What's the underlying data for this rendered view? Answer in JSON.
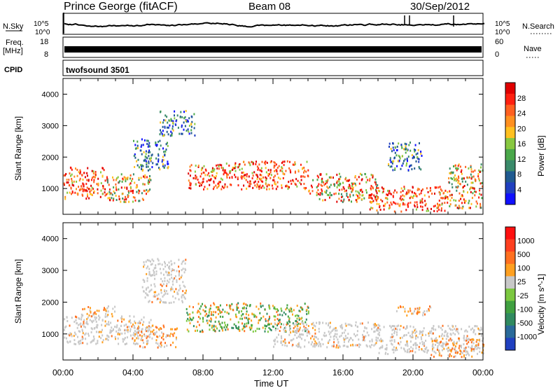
{
  "header": {
    "station": "Prince George (fitACF)",
    "beam": "Beam 08",
    "date": "30/Sep/2012"
  },
  "strips": {
    "nsky_label": "N.Sky",
    "nsearch_label": "N.Search",
    "nsky_ticks": [
      "10^5",
      "10^0"
    ],
    "freq_label": "Freq.",
    "freq_unit": "[MHz]",
    "freq_ticks": [
      "18",
      "8"
    ],
    "nave_label": "Nave",
    "nave_ticks": [
      "60",
      "0"
    ],
    "cpid_label": "CPID",
    "cpid_value": "twofsound 3501"
  },
  "chart_data": [
    {
      "type": "heatmap",
      "name": "power",
      "ylabel": "Slant Range [km]",
      "xlabel": "",
      "ylim": [
        180,
        4500
      ],
      "yticks": [
        "1000",
        "2000",
        "3000",
        "4000"
      ],
      "xlim": [
        0,
        24
      ],
      "colorbar": {
        "label": "Power [dB]",
        "ticks": [
          "4",
          "8",
          "12",
          "16",
          "20",
          "24",
          "28"
        ],
        "colors": [
          "#1010ff",
          "#2040c0",
          "#205a90",
          "#3a8a6a",
          "#4aa84a",
          "#88c840",
          "#ffc020",
          "#ff9020",
          "#ff6020",
          "#ff2010",
          "#e00000"
        ]
      },
      "features": [
        {
          "t0": 0.0,
          "t1": 2.5,
          "r0": 700,
          "r1": 1700,
          "level": "high"
        },
        {
          "t0": 2.5,
          "t1": 5.0,
          "r0": 600,
          "r1": 1500,
          "level": "medium"
        },
        {
          "t0": 4.0,
          "t1": 6.0,
          "r0": 1600,
          "r1": 2600,
          "level": "low"
        },
        {
          "t0": 5.5,
          "t1": 7.5,
          "r0": 2700,
          "r1": 3500,
          "level": "low"
        },
        {
          "t0": 7.0,
          "t1": 9.0,
          "r0": 1000,
          "r1": 1800,
          "level": "high"
        },
        {
          "t0": 9.0,
          "t1": 14.0,
          "r0": 1000,
          "r1": 1900,
          "level": "high"
        },
        {
          "t0": 14.0,
          "t1": 18.0,
          "r0": 600,
          "r1": 1500,
          "level": "medium"
        },
        {
          "t0": 17.5,
          "t1": 22.0,
          "r0": 300,
          "r1": 1100,
          "level": "high"
        },
        {
          "t0": 18.5,
          "t1": 20.5,
          "r0": 1600,
          "r1": 2500,
          "level": "low"
        },
        {
          "t0": 22.0,
          "t1": 24.0,
          "r0": 400,
          "r1": 1800,
          "level": "medium"
        }
      ]
    },
    {
      "type": "heatmap",
      "name": "velocity",
      "ylabel": "Slant Range [km]",
      "xlabel": "Time UT",
      "ylim": [
        180,
        4500
      ],
      "yticks": [
        "1000",
        "2000",
        "3000",
        "4000"
      ],
      "xlim": [
        0,
        24
      ],
      "xticks": [
        "00:00",
        "04:00",
        "08:00",
        "12:00",
        "16:00",
        "20:00",
        "00:00"
      ],
      "colorbar": {
        "label": "Velocity [m s^-1]",
        "ticks": [
          "1000",
          "500",
          "100",
          "25",
          "-25",
          "-100",
          "-500",
          "-1000"
        ],
        "colors": [
          "#2040c0",
          "#2a6a9a",
          "#308a60",
          "#40a040",
          "#7cc840",
          "#c8c8c8",
          "#ffa020",
          "#ff7020",
          "#ff4020",
          "#ff1010"
        ]
      },
      "features": [
        {
          "t0": 0.0,
          "t1": 5.0,
          "r0": 700,
          "r1": 1600,
          "level": "grey"
        },
        {
          "t0": 1.0,
          "t1": 3.0,
          "r0": 1600,
          "r1": 1900,
          "level": "orange"
        },
        {
          "t0": 4.0,
          "t1": 6.5,
          "r0": 600,
          "r1": 1300,
          "level": "orange"
        },
        {
          "t0": 4.5,
          "t1": 7.0,
          "r0": 2000,
          "r1": 3400,
          "level": "grey"
        },
        {
          "t0": 7.0,
          "t1": 14.0,
          "r0": 1100,
          "r1": 2000,
          "level": "green"
        },
        {
          "t0": 12.0,
          "t1": 18.0,
          "r0": 600,
          "r1": 1400,
          "level": "grey"
        },
        {
          "t0": 18.0,
          "t1": 24.0,
          "r0": 400,
          "r1": 1300,
          "level": "grey"
        },
        {
          "t0": 19.0,
          "t1": 21.0,
          "r0": 1600,
          "r1": 1900,
          "level": "orange"
        },
        {
          "t0": 21.0,
          "t1": 24.0,
          "r0": 300,
          "r1": 900,
          "level": "orange"
        }
      ]
    }
  ]
}
